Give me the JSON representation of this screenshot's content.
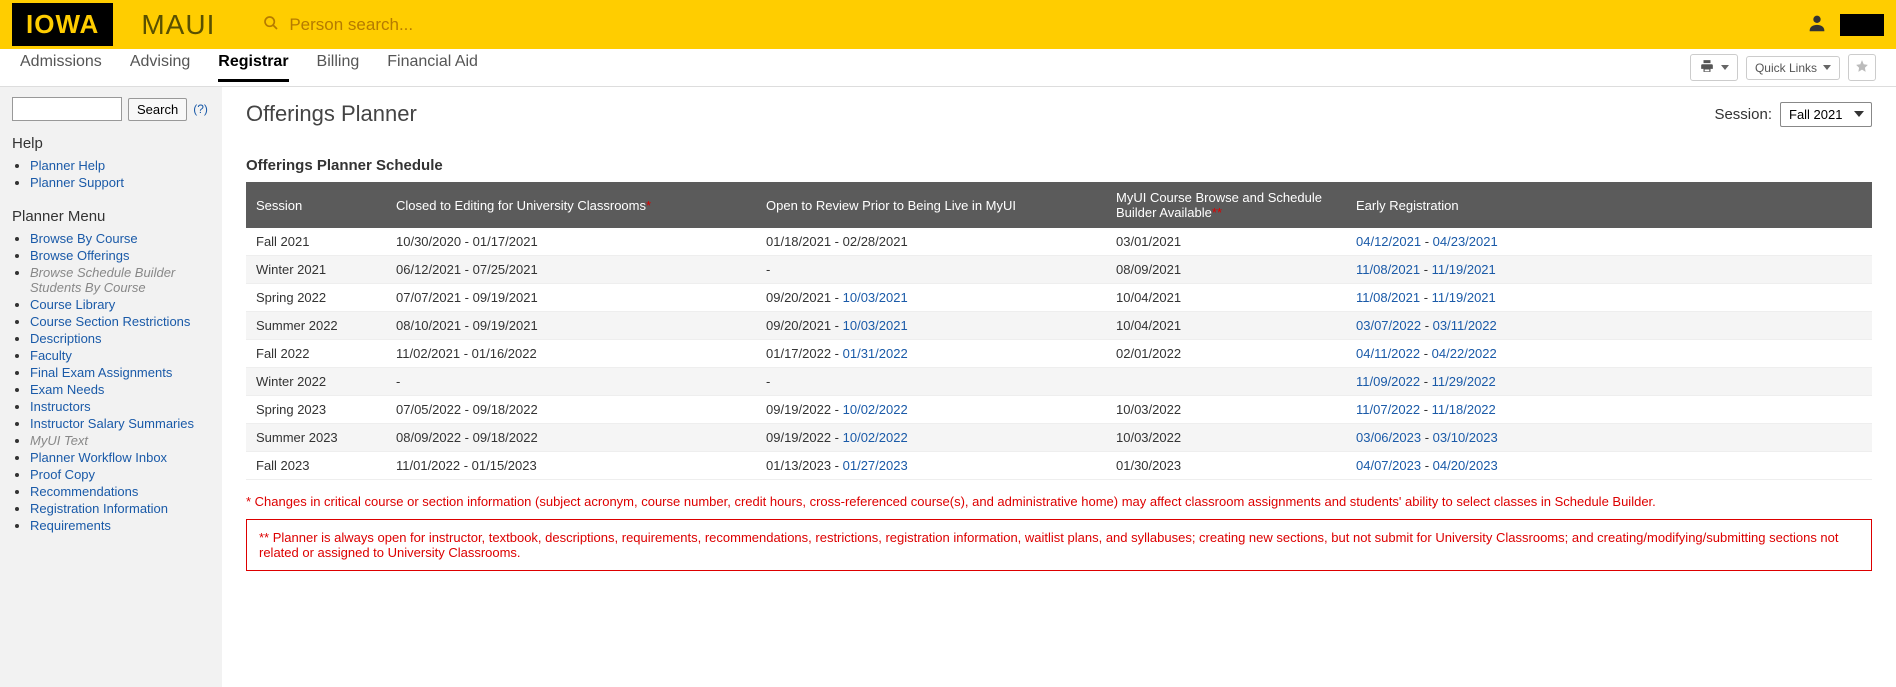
{
  "topbar": {
    "logo_text": "IOWA",
    "app_name": "MAUI",
    "search_placeholder": "Person search...",
    "colors": {
      "bar_bg": "#ffcd00",
      "logo_bg": "#000000",
      "logo_fg": "#ffcd00",
      "placeholder": "#b57b00"
    }
  },
  "nav": {
    "tabs": [
      "Admissions",
      "Advising",
      "Registrar",
      "Billing",
      "Financial Aid"
    ],
    "active_index": 2,
    "quick_links_label": "Quick Links"
  },
  "sidebar": {
    "search_button": "Search",
    "help_q": "(?)",
    "help_heading": "Help",
    "help_links": [
      "Planner Help",
      "Planner Support"
    ],
    "menu_heading": "Planner Menu",
    "menu_items": [
      {
        "label": "Browse By Course",
        "type": "link"
      },
      {
        "label": "Browse Offerings",
        "type": "link"
      },
      {
        "label": "Browse Schedule Builder Students By Course",
        "type": "muted"
      },
      {
        "label": "Course Library",
        "type": "link"
      },
      {
        "label": "Course Section Restrictions",
        "type": "link"
      },
      {
        "label": "Descriptions",
        "type": "link"
      },
      {
        "label": "Faculty",
        "type": "link"
      },
      {
        "label": "Final Exam Assignments",
        "type": "link"
      },
      {
        "label": "Exam Needs",
        "type": "link"
      },
      {
        "label": "Instructors",
        "type": "link"
      },
      {
        "label": "Instructor Salary Summaries",
        "type": "link"
      },
      {
        "label": "MyUI Text",
        "type": "muted"
      },
      {
        "label": "Planner Workflow Inbox",
        "type": "link"
      },
      {
        "label": "Proof Copy",
        "type": "link"
      },
      {
        "label": "Recommendations",
        "type": "link"
      },
      {
        "label": "Registration Information",
        "type": "link"
      },
      {
        "label": "Requirements",
        "type": "link"
      }
    ]
  },
  "page": {
    "title": "Offerings Planner",
    "session_label": "Session:",
    "session_value": "Fall 2021"
  },
  "schedule": {
    "title": "Offerings Planner Schedule",
    "columns": [
      "Session",
      "Closed to Editing for University Classrooms",
      "Open to Review Prior to Being Live in MyUI",
      "MyUI Course Browse and Schedule Builder Available",
      "Early Registration"
    ],
    "col_asterisks": [
      "",
      "*",
      "",
      "**",
      ""
    ],
    "rows": [
      {
        "session": "Fall 2021",
        "closed_a": "10/30/2020",
        "closed_b": "01/17/2021",
        "open_a": "01/18/2021",
        "open_b": "02/28/2021",
        "open_b_link": false,
        "myui": "03/01/2021",
        "early_a": "04/12/2021",
        "early_b": "04/23/2021"
      },
      {
        "session": "Winter 2021",
        "closed_a": "06/12/2021",
        "closed_b": "07/25/2021",
        "open_a": "-",
        "open_b": "",
        "open_b_link": false,
        "myui": "08/09/2021",
        "early_a": "11/08/2021",
        "early_b": "11/19/2021"
      },
      {
        "session": "Spring 2022",
        "closed_a": "07/07/2021",
        "closed_b": "09/19/2021",
        "open_a": "09/20/2021",
        "open_b": "10/03/2021",
        "open_b_link": true,
        "myui": "10/04/2021",
        "early_a": "11/08/2021",
        "early_b": "11/19/2021"
      },
      {
        "session": "Summer 2022",
        "closed_a": "08/10/2021",
        "closed_b": "09/19/2021",
        "open_a": "09/20/2021",
        "open_b": "10/03/2021",
        "open_b_link": true,
        "myui": "10/04/2021",
        "early_a": "03/07/2022",
        "early_b": "03/11/2022"
      },
      {
        "session": "Fall 2022",
        "closed_a": "11/02/2021",
        "closed_b": "01/16/2022",
        "open_a": "01/17/2022",
        "open_b": "01/31/2022",
        "open_b_link": true,
        "myui": "02/01/2022",
        "early_a": "04/11/2022",
        "early_b": "04/22/2022"
      },
      {
        "session": "Winter 2022",
        "closed_a": "-",
        "closed_b": "",
        "open_a": "-",
        "open_b": "",
        "open_b_link": false,
        "myui": "",
        "early_a": "11/09/2022",
        "early_b": "11/29/2022"
      },
      {
        "session": "Spring 2023",
        "closed_a": "07/05/2022",
        "closed_b": "09/18/2022",
        "open_a": "09/19/2022",
        "open_b": "10/02/2022",
        "open_b_link": true,
        "myui": "10/03/2022",
        "early_a": "11/07/2022",
        "early_b": "11/18/2022"
      },
      {
        "session": "Summer 2023",
        "closed_a": "08/09/2022",
        "closed_b": "09/18/2022",
        "open_a": "09/19/2022",
        "open_b": "10/02/2022",
        "open_b_link": true,
        "myui": "10/03/2022",
        "early_a": "03/06/2023",
        "early_b": "03/10/2023"
      },
      {
        "session": "Fall 2023",
        "closed_a": "11/01/2022",
        "closed_b": "01/15/2023",
        "open_a": "01/13/2023",
        "open_b": "01/27/2023",
        "open_b_link": true,
        "myui": "01/30/2023",
        "early_a": "04/07/2023",
        "early_b": "04/20/2023"
      }
    ],
    "note1": "* Changes in critical course or section information (subject acronym, course number, credit hours, cross-referenced course(s), and administrative home) may affect classroom assignments and students' ability to select classes in Schedule Builder.",
    "note2": "** Planner is always open for instructor, textbook, descriptions, requirements, recommendations, restrictions, registration information, waitlist plans, and syllabuses; creating new sections, but not submit for University Classrooms; and creating/modifying/submitting sections not related or assigned to University Classrooms.",
    "colors": {
      "header_bg": "#5b5b5b",
      "header_fg": "#ffffff",
      "row_alt_bg": "#f5f5f5",
      "link": "#1a5aa8",
      "red": "#d00000"
    }
  }
}
